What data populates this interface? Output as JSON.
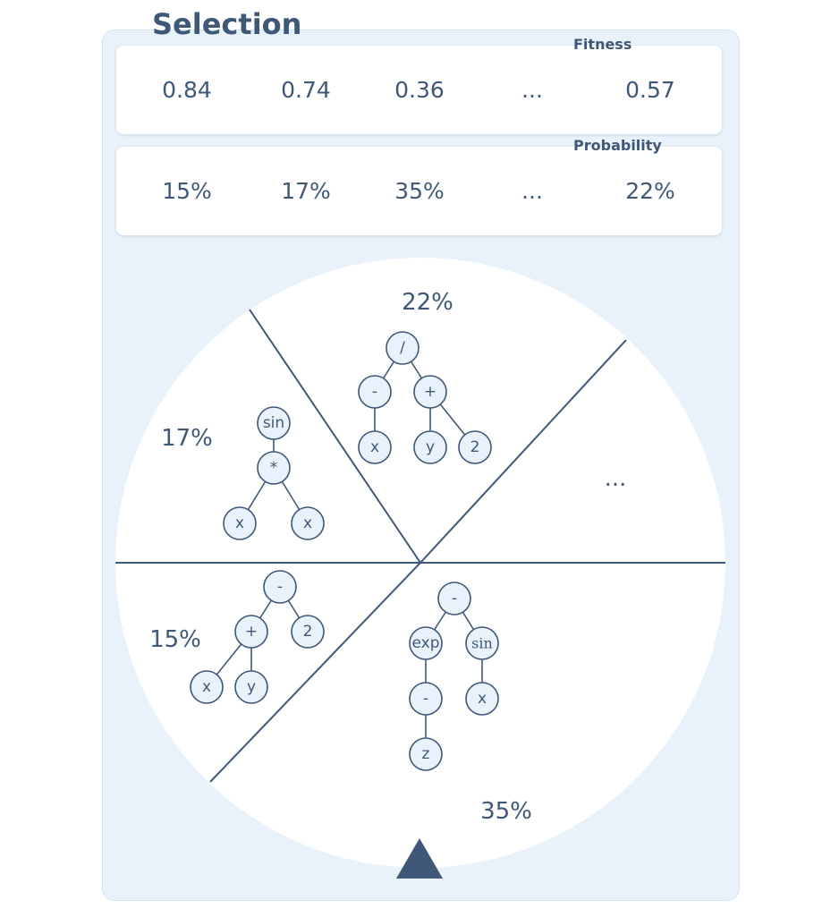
{
  "title": "Selection",
  "fitness": {
    "label": "Fitness",
    "values": [
      "0.84",
      "0.74",
      "0.36",
      "...",
      "0.57"
    ]
  },
  "probability": {
    "label": "Probability",
    "values": [
      "15%",
      "17%",
      "35%",
      "...",
      "22%"
    ]
  },
  "wheel": {
    "segments": [
      {
        "label": "22%"
      },
      {
        "label": "17%"
      },
      {
        "label": "..."
      },
      {
        "label": "15%"
      },
      {
        "label": "35%"
      }
    ],
    "trees": {
      "t22": [
        "/",
        "-",
        "+",
        "x",
        "y",
        "2"
      ],
      "t17": [
        "sin",
        "*",
        "x",
        "x"
      ],
      "t15": [
        "-",
        "+",
        "2",
        "x",
        "y"
      ],
      "t35": [
        "-",
        "exp",
        "sin",
        "-",
        "x",
        "z"
      ]
    }
  },
  "colors": {
    "accent": "#3f5878",
    "panel": "#e9f2fa",
    "card": "#ffffff"
  }
}
